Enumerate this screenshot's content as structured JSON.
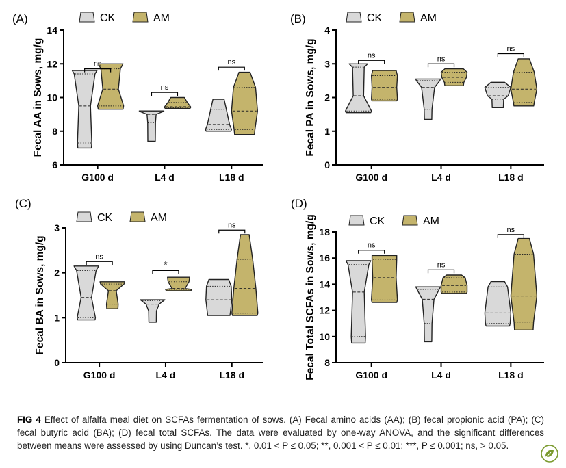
{
  "figure": {
    "categories": [
      "G100 d",
      "L4 d",
      "L18 d"
    ],
    "legend": [
      "CK",
      "AM"
    ],
    "colors": {
      "CK": "#d9d9d9",
      "AM": "#c4b46c",
      "outline": "#222222"
    }
  },
  "chart_data": [
    {
      "panel": "(A)",
      "type": "violin",
      "ylabel": "Fecal AA in Sows, mg/g",
      "ylim": [
        6,
        14
      ],
      "yticks": [
        6,
        8,
        10,
        12,
        14
      ],
      "categories": [
        "G100 d",
        "L4 d",
        "L18 d"
      ],
      "series": [
        {
          "name": "CK",
          "groups": [
            {
              "min": 7.0,
              "max": 11.6,
              "q1": 7.3,
              "median": 9.5,
              "q3": 11.4,
              "peak": 11.5,
              "widths": [
                0.55,
                0.45,
                0.8,
                1.0
              ]
            },
            {
              "min": 7.4,
              "max": 9.2,
              "q1": 8.5,
              "median": 9.0,
              "q3": 9.15,
              "peak": 9.15,
              "widths": [
                0.3,
                0.35,
                0.85,
                1.0
              ]
            },
            {
              "min": 8.0,
              "max": 9.9,
              "q1": 8.1,
              "median": 8.4,
              "q3": 9.3,
              "peak": 8.2,
              "widths": [
                1.0,
                0.85,
                0.6,
                0.45
              ]
            }
          ]
        },
        {
          "name": "AM",
          "groups": [
            {
              "min": 9.3,
              "max": 12.0,
              "q1": 9.5,
              "median": 10.5,
              "q3": 11.7,
              "peak": 11.8,
              "widths": [
                1.0,
                0.6,
                0.75,
                1.0
              ]
            },
            {
              "min": 9.35,
              "max": 10.0,
              "q1": 9.4,
              "median": 9.45,
              "q3": 9.7,
              "peak": 9.45,
              "widths": [
                1.0,
                1.0,
                0.75,
                0.55
              ]
            },
            {
              "min": 7.8,
              "max": 11.5,
              "q1": 8.1,
              "median": 9.2,
              "q3": 10.6,
              "peak": 9.0,
              "widths": [
                0.8,
                1.0,
                0.85,
                0.45
              ]
            }
          ]
        }
      ],
      "significance": [
        "ns",
        "ns",
        "ns"
      ],
      "sig_heights": [
        11.7,
        10.3,
        11.8
      ]
    },
    {
      "panel": "(B)",
      "type": "violin",
      "ylabel": "Fecal PA in Sows, mg/g",
      "ylim": [
        0,
        4
      ],
      "yticks": [
        0,
        1,
        2,
        3,
        4
      ],
      "categories": [
        "G100 d",
        "L4 d",
        "L18 d"
      ],
      "series": [
        {
          "name": "CK",
          "groups": [
            {
              "min": 1.55,
              "max": 3.0,
              "q1": 1.6,
              "median": 2.05,
              "q3": 2.9,
              "peak": 1.6,
              "widths": [
                1.0,
                0.4,
                0.45,
                0.75
              ]
            },
            {
              "min": 1.35,
              "max": 2.55,
              "q1": 1.65,
              "median": 2.3,
              "q3": 2.5,
              "peak": 2.5,
              "widths": [
                0.3,
                0.5,
                0.9,
                1.0
              ]
            },
            {
              "min": 1.7,
              "max": 2.45,
              "q1": 1.95,
              "median": 2.05,
              "q3": 2.3,
              "peak": 2.05,
              "widths": [
                0.45,
                0.8,
                1.0,
                0.55
              ]
            }
          ]
        },
        {
          "name": "AM",
          "groups": [
            {
              "min": 1.9,
              "max": 2.8,
              "q1": 1.95,
              "median": 2.3,
              "q3": 2.65,
              "peak": 2.3,
              "widths": [
                1.0,
                0.95,
                1.0,
                0.95
              ]
            },
            {
              "min": 2.35,
              "max": 2.85,
              "q1": 2.45,
              "median": 2.6,
              "q3": 2.75,
              "peak": 2.6,
              "widths": [
                0.75,
                0.95,
                1.0,
                0.75
              ]
            },
            {
              "min": 1.75,
              "max": 3.15,
              "q1": 1.85,
              "median": 2.25,
              "q3": 2.75,
              "peak": 2.2,
              "widths": [
                0.8,
                1.0,
                0.8,
                0.45
              ]
            }
          ]
        }
      ],
      "significance": [
        "ns",
        "ns",
        "ns"
      ],
      "sig_heights": [
        3.1,
        3.0,
        3.3
      ]
    },
    {
      "panel": "(C)",
      "type": "violin",
      "ylabel": "Fecal BA in Sows, mg/g",
      "ylim": [
        0,
        3
      ],
      "yticks": [
        0,
        1,
        2,
        3
      ],
      "categories": [
        "G100 d",
        "L4 d",
        "L18 d"
      ],
      "series": [
        {
          "name": "CK",
          "groups": [
            {
              "min": 0.95,
              "max": 2.15,
              "q1": 1.0,
              "median": 1.45,
              "q3": 2.05,
              "peak": 2.1,
              "widths": [
                0.7,
                0.4,
                0.75,
                1.0
              ]
            },
            {
              "min": 0.9,
              "max": 1.4,
              "q1": 1.15,
              "median": 1.3,
              "q3": 1.38,
              "peak": 1.38,
              "widths": [
                0.3,
                0.5,
                0.85,
                1.0
              ]
            },
            {
              "min": 1.05,
              "max": 1.85,
              "q1": 1.15,
              "median": 1.4,
              "q3": 1.7,
              "peak": 1.45,
              "widths": [
                0.9,
                1.0,
                0.95,
                0.8
              ]
            }
          ]
        },
        {
          "name": "AM",
          "groups": [
            {
              "min": 1.2,
              "max": 1.8,
              "q1": 1.3,
              "median": 1.6,
              "q3": 1.75,
              "peak": 1.75,
              "widths": [
                0.45,
                0.3,
                0.9,
                1.0
              ]
            },
            {
              "min": 1.6,
              "max": 1.9,
              "q1": 1.63,
              "median": 1.65,
              "q3": 1.8,
              "peak": 1.65,
              "widths": [
                1.0,
                0.5,
                0.8,
                0.9
              ]
            },
            {
              "min": 1.05,
              "max": 2.85,
              "q1": 1.1,
              "median": 1.65,
              "q3": 2.3,
              "peak": 1.3,
              "widths": [
                1.0,
                0.85,
                0.6,
                0.35
              ]
            }
          ]
        }
      ],
      "significance": [
        "ns",
        "*",
        "ns"
      ],
      "sig_heights": [
        2.25,
        2.05,
        2.95
      ]
    },
    {
      "panel": "(D)",
      "type": "violin",
      "ylabel": "Fecal Total SCFAs in Sows, mg/g",
      "ylim": [
        8,
        18
      ],
      "yticks": [
        8,
        10,
        12,
        14,
        16,
        18
      ],
      "categories": [
        "G100 d",
        "L4 d",
        "L18 d"
      ],
      "series": [
        {
          "name": "CK",
          "groups": [
            {
              "min": 9.5,
              "max": 15.8,
              "q1": 10.0,
              "median": 13.4,
              "q3": 15.5,
              "peak": 15.5,
              "widths": [
                0.55,
                0.45,
                0.8,
                1.0
              ]
            },
            {
              "min": 9.6,
              "max": 13.8,
              "q1": 11.0,
              "median": 12.85,
              "q3": 13.6,
              "peak": 13.6,
              "widths": [
                0.3,
                0.45,
                0.85,
                1.0
              ]
            },
            {
              "min": 10.8,
              "max": 14.2,
              "q1": 11.0,
              "median": 11.8,
              "q3": 13.8,
              "peak": 11.6,
              "widths": [
                0.95,
                1.0,
                0.75,
                0.55
              ]
            }
          ]
        },
        {
          "name": "AM",
          "groups": [
            {
              "min": 12.6,
              "max": 16.2,
              "q1": 12.8,
              "median": 14.5,
              "q3": 15.9,
              "peak": 14.5,
              "widths": [
                1.0,
                0.9,
                0.95,
                1.0
              ]
            },
            {
              "min": 13.3,
              "max": 14.7,
              "q1": 13.4,
              "median": 13.9,
              "q3": 14.5,
              "peak": 13.7,
              "widths": [
                1.0,
                1.0,
                0.85,
                0.6
              ]
            },
            {
              "min": 10.5,
              "max": 17.5,
              "q1": 11.1,
              "median": 13.1,
              "q3": 16.3,
              "peak": 12.7,
              "widths": [
                0.75,
                1.0,
                0.75,
                0.45
              ]
            }
          ]
        }
      ],
      "significance": [
        "ns",
        "ns",
        "ns"
      ],
      "sig_heights": [
        16.6,
        15.1,
        17.8
      ]
    }
  ],
  "caption": {
    "label": "FIG 4",
    "text": "Effect of alfalfa meal diet on SCFAs fermentation of sows. (A) Fecal amino acids (AA); (B) fecal propionic acid (PA); (C) fecal butyric acid (BA); (D) fecal total SCFAs. The data were evaluated by one-way ANOVA, and the significant differences between means were assessed by using Duncan’s test. *, 0.01 < P ≤ 0.05; **, 0.001 < P ≤ 0.01; ***, P ≤ 0.001; ns, > 0.05."
  },
  "badge_icon": "leaf-icon"
}
